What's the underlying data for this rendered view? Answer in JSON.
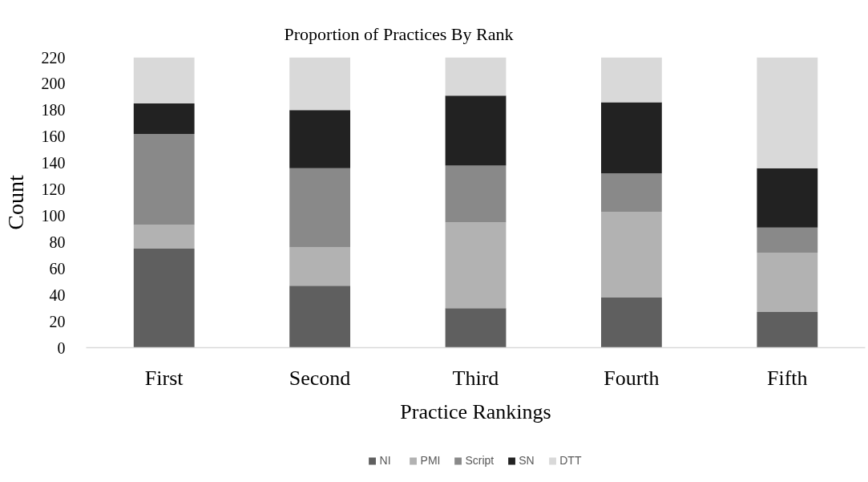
{
  "chart_data": {
    "type": "bar",
    "title": "Proportion of Practices By Rank",
    "xlabel": "Practice Rankings",
    "ylabel": "Count",
    "categories": [
      "First",
      "Second",
      "Third",
      "Fourth",
      "Fifth"
    ],
    "stacked": true,
    "series": [
      {
        "name": "NI",
        "color": "#5f5f5f",
        "values": [
          75,
          47,
          30,
          38,
          27
        ]
      },
      {
        "name": "PMI",
        "color": "#b2b2b2",
        "values": [
          18,
          29,
          65,
          65,
          45
        ]
      },
      {
        "name": "Script",
        "color": "#898989",
        "values": [
          69,
          60,
          43,
          29,
          19
        ]
      },
      {
        "name": "SN",
        "color": "#222222",
        "values": [
          23,
          44,
          53,
          54,
          45
        ]
      },
      {
        "name": "DTT",
        "color": "#d9d9d9",
        "values": [
          35,
          40,
          29,
          34,
          84
        ]
      }
    ],
    "ylim": [
      0,
      220
    ],
    "yticks": [
      0,
      20,
      40,
      60,
      80,
      100,
      120,
      140,
      160,
      180,
      200,
      220
    ],
    "legend": "bottom"
  }
}
